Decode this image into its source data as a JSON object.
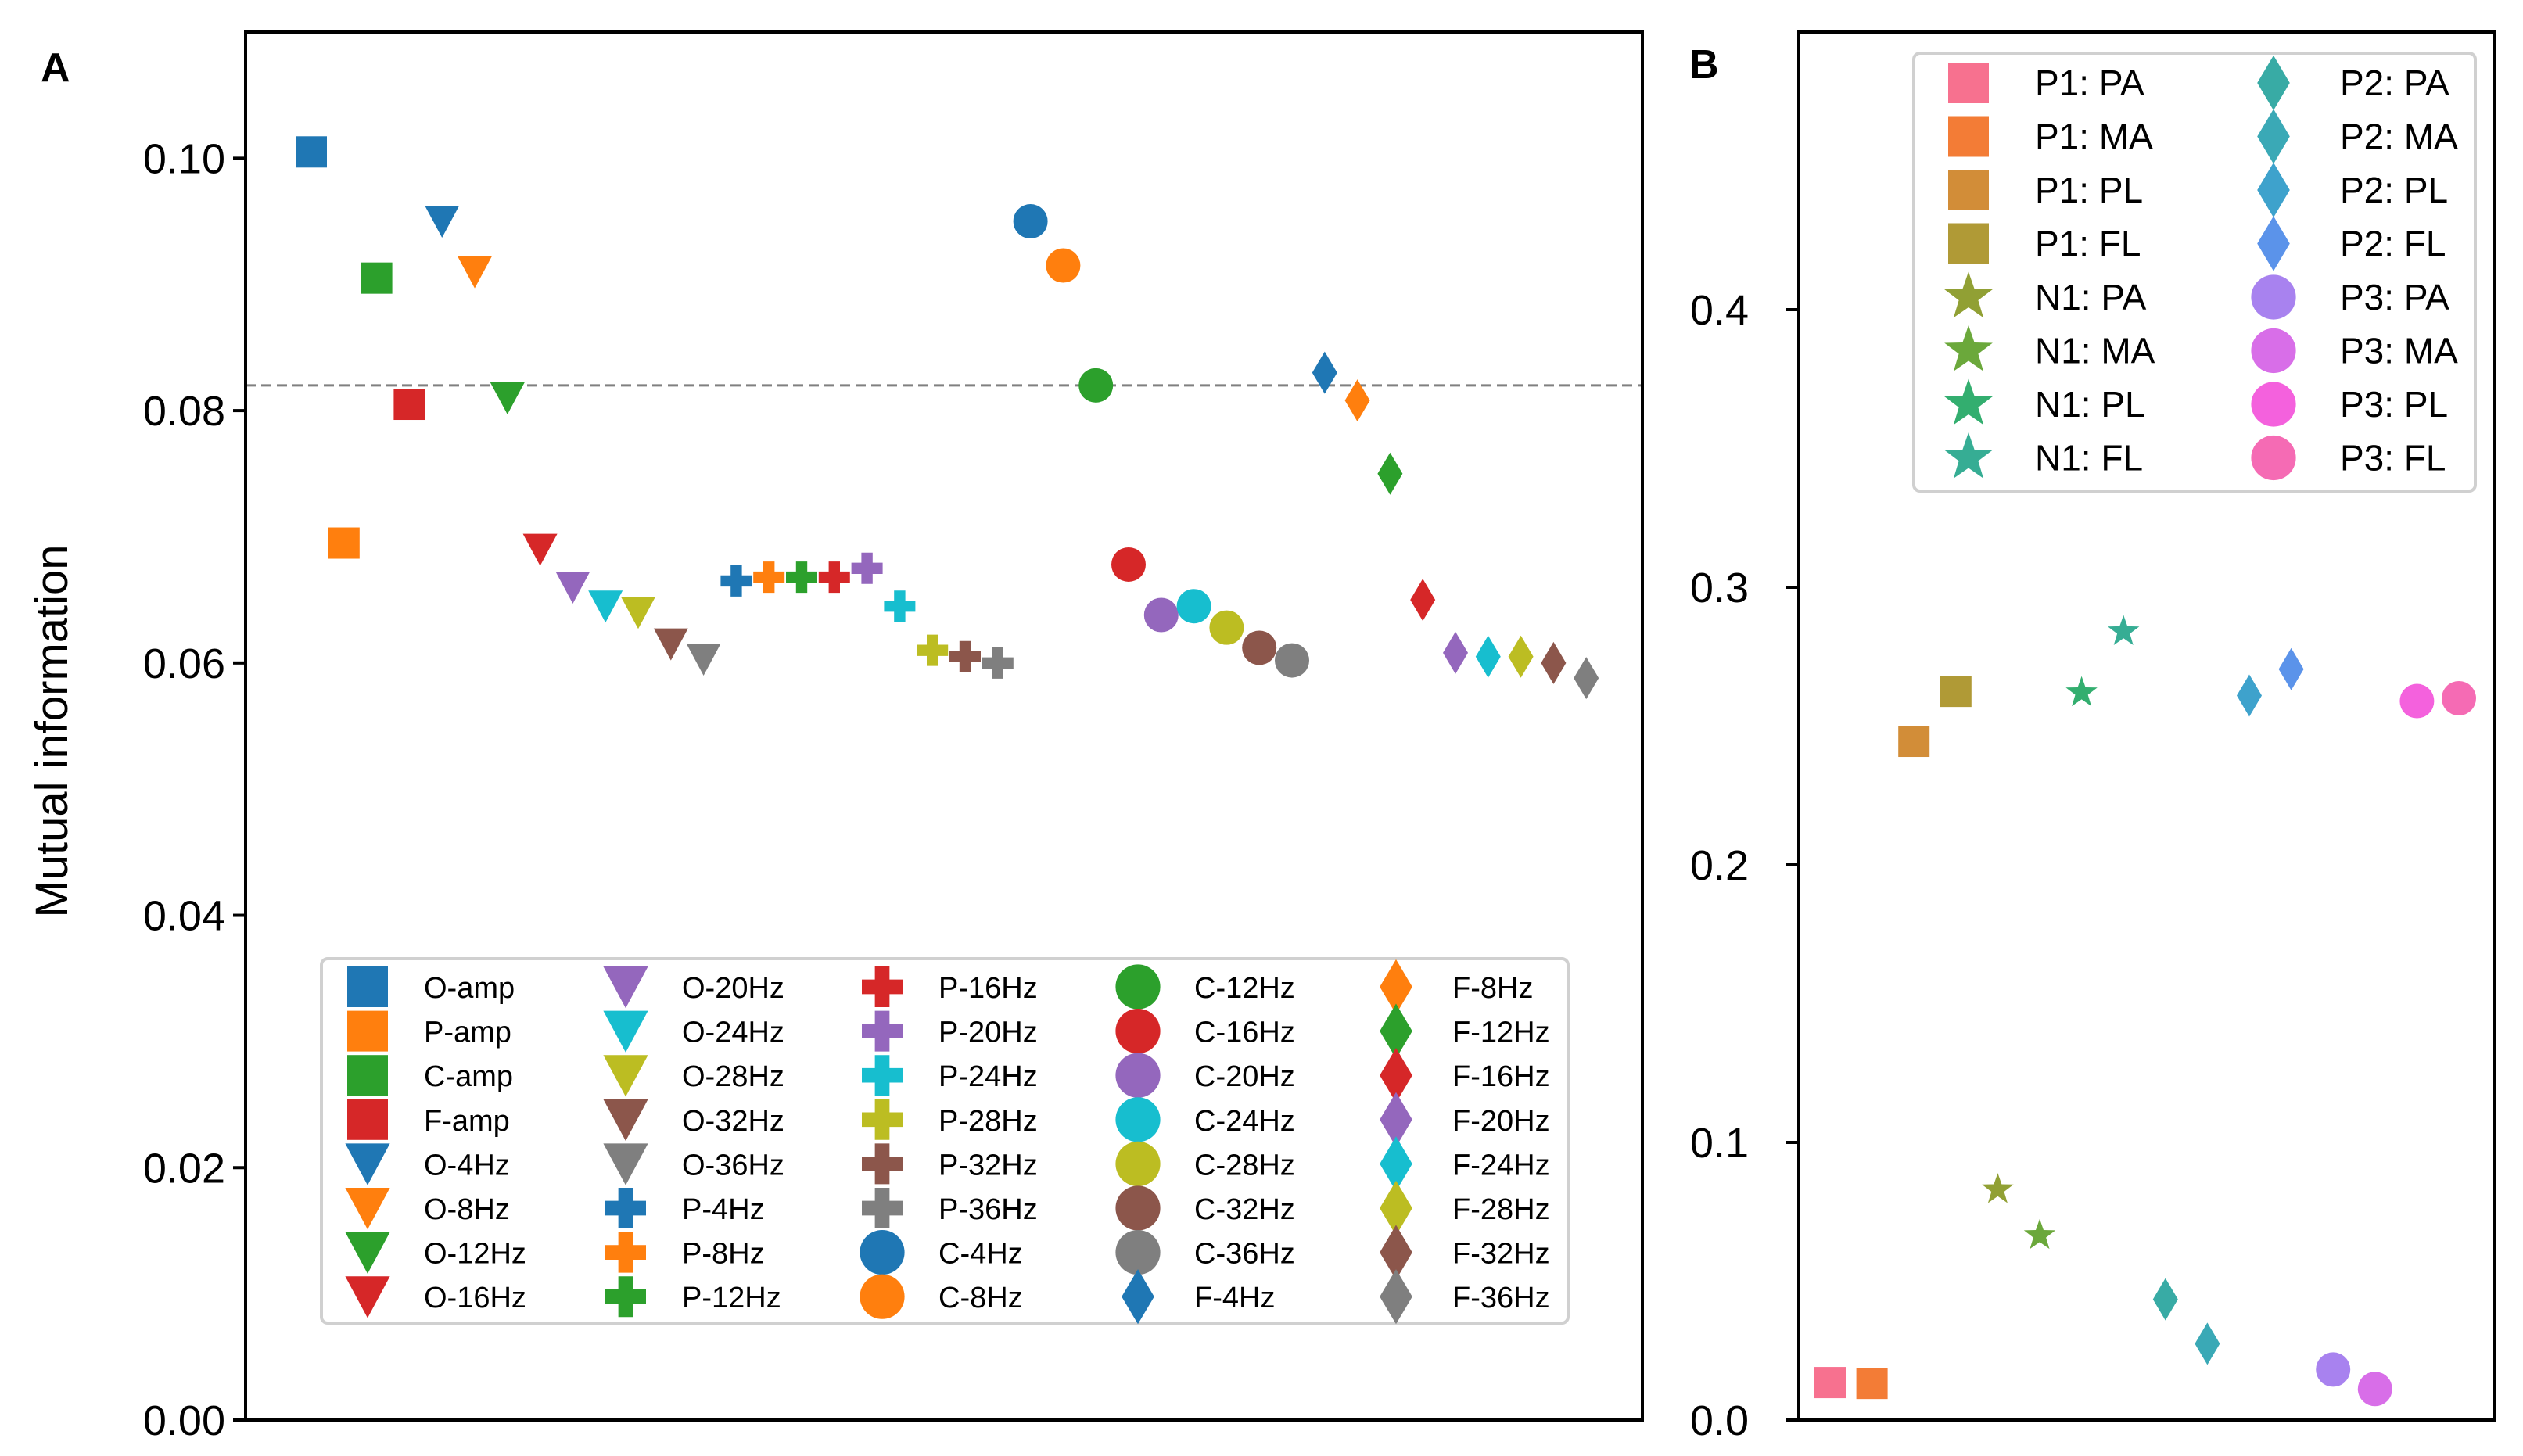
{
  "chart_data": [
    {
      "type": "scatter",
      "panel_label": "A",
      "ylabel": "Mutual information",
      "xlabel": "",
      "ylim": [
        0,
        0.11
      ],
      "yticks": [
        "0.00",
        "0.02",
        "0.04",
        "0.06",
        "0.08",
        "0.10"
      ],
      "reference_line": 0.082,
      "legend_placement": "lower-center",
      "series": [
        {
          "name": "O-amp",
          "value": 0.1005,
          "marker": "square",
          "color": "#1f77b4"
        },
        {
          "name": "P-amp",
          "value": 0.0695,
          "marker": "square",
          "color": "#ff7f0e"
        },
        {
          "name": "C-amp",
          "value": 0.0905,
          "marker": "square",
          "color": "#2ca02c"
        },
        {
          "name": "F-amp",
          "value": 0.0805,
          "marker": "square",
          "color": "#d62728"
        },
        {
          "name": "O-4Hz",
          "value": 0.095,
          "marker": "triangle-down",
          "color": "#1f77b4"
        },
        {
          "name": "O-8Hz",
          "value": 0.091,
          "marker": "triangle-down",
          "color": "#ff7f0e"
        },
        {
          "name": "O-12Hz",
          "value": 0.081,
          "marker": "triangle-down",
          "color": "#2ca02c"
        },
        {
          "name": "O-16Hz",
          "value": 0.069,
          "marker": "triangle-down",
          "color": "#d62728"
        },
        {
          "name": "O-20Hz",
          "value": 0.066,
          "marker": "triangle-down",
          "color": "#9467bd"
        },
        {
          "name": "O-24Hz",
          "value": 0.0645,
          "marker": "triangle-down",
          "color": "#17becf"
        },
        {
          "name": "O-28Hz",
          "value": 0.064,
          "marker": "triangle-down",
          "color": "#bcbd22"
        },
        {
          "name": "O-32Hz",
          "value": 0.0615,
          "marker": "triangle-down",
          "color": "#8c564b"
        },
        {
          "name": "O-36Hz",
          "value": 0.0603,
          "marker": "triangle-down",
          "color": "#7f7f7f"
        },
        {
          "name": "P-4Hz",
          "value": 0.0665,
          "marker": "plus",
          "color": "#1f77b4"
        },
        {
          "name": "P-8Hz",
          "value": 0.0668,
          "marker": "plus",
          "color": "#ff7f0e"
        },
        {
          "name": "P-12Hz",
          "value": 0.0668,
          "marker": "plus",
          "color": "#2ca02c"
        },
        {
          "name": "P-16Hz",
          "value": 0.0668,
          "marker": "plus",
          "color": "#d62728"
        },
        {
          "name": "P-20Hz",
          "value": 0.0675,
          "marker": "plus",
          "color": "#9467bd"
        },
        {
          "name": "P-24Hz",
          "value": 0.0645,
          "marker": "plus",
          "color": "#17becf"
        },
        {
          "name": "P-28Hz",
          "value": 0.061,
          "marker": "plus",
          "color": "#bcbd22"
        },
        {
          "name": "P-32Hz",
          "value": 0.0605,
          "marker": "plus",
          "color": "#8c564b"
        },
        {
          "name": "P-36Hz",
          "value": 0.06,
          "marker": "plus",
          "color": "#7f7f7f"
        },
        {
          "name": "C-4Hz",
          "value": 0.095,
          "marker": "circle",
          "color": "#1f77b4"
        },
        {
          "name": "C-8Hz",
          "value": 0.0915,
          "marker": "circle",
          "color": "#ff7f0e"
        },
        {
          "name": "C-12Hz",
          "value": 0.082,
          "marker": "circle",
          "color": "#2ca02c"
        },
        {
          "name": "C-16Hz",
          "value": 0.0678,
          "marker": "circle",
          "color": "#d62728"
        },
        {
          "name": "C-20Hz",
          "value": 0.0638,
          "marker": "circle",
          "color": "#9467bd"
        },
        {
          "name": "C-24Hz",
          "value": 0.0645,
          "marker": "circle",
          "color": "#17becf"
        },
        {
          "name": "C-28Hz",
          "value": 0.0628,
          "marker": "circle",
          "color": "#bcbd22"
        },
        {
          "name": "C-32Hz",
          "value": 0.0612,
          "marker": "circle",
          "color": "#8c564b"
        },
        {
          "name": "C-36Hz",
          "value": 0.0602,
          "marker": "circle",
          "color": "#7f7f7f"
        },
        {
          "name": "F-4Hz",
          "value": 0.083,
          "marker": "diamond",
          "color": "#1f77b4"
        },
        {
          "name": "F-8Hz",
          "value": 0.0808,
          "marker": "diamond",
          "color": "#ff7f0e"
        },
        {
          "name": "F-12Hz",
          "value": 0.075,
          "marker": "diamond",
          "color": "#2ca02c"
        },
        {
          "name": "F-16Hz",
          "value": 0.065,
          "marker": "diamond",
          "color": "#d62728"
        },
        {
          "name": "F-20Hz",
          "value": 0.0608,
          "marker": "diamond",
          "color": "#9467bd"
        },
        {
          "name": "F-24Hz",
          "value": 0.0605,
          "marker": "diamond",
          "color": "#17becf"
        },
        {
          "name": "F-28Hz",
          "value": 0.0605,
          "marker": "diamond",
          "color": "#bcbd22"
        },
        {
          "name": "F-32Hz",
          "value": 0.06,
          "marker": "diamond",
          "color": "#8c564b"
        },
        {
          "name": "F-36Hz",
          "value": 0.0588,
          "marker": "diamond",
          "color": "#7f7f7f"
        }
      ]
    },
    {
      "type": "scatter",
      "panel_label": "B",
      "ylabel": "",
      "xlabel": "",
      "ylim": [
        0,
        0.5
      ],
      "yticks": [
        "0.0",
        "0.1",
        "0.2",
        "0.3",
        "0.4"
      ],
      "legend_placement": "upper-right",
      "series": [
        {
          "name": "P1: PA",
          "value": 0.0135,
          "marker": "square",
          "color": "#f7718f"
        },
        {
          "name": "P1: MA",
          "value": 0.0132,
          "marker": "square",
          "color": "#f37c36"
        },
        {
          "name": "P1: PL",
          "value": 0.2445,
          "marker": "square",
          "color": "#d28d38"
        },
        {
          "name": "P1: FL",
          "value": 0.2625,
          "marker": "square",
          "color": "#b09a36"
        },
        {
          "name": "N1: PA",
          "value": 0.083,
          "marker": "star",
          "color": "#91a034"
        },
        {
          "name": "N1: MA",
          "value": 0.0665,
          "marker": "star",
          "color": "#6ba83b"
        },
        {
          "name": "N1: PL",
          "value": 0.262,
          "marker": "star",
          "color": "#33ae6f"
        },
        {
          "name": "N1: FL",
          "value": 0.284,
          "marker": "star",
          "color": "#36ad94"
        },
        {
          "name": "P2: PA",
          "value": 0.0435,
          "marker": "diamond",
          "color": "#38aba5"
        },
        {
          "name": "P2: MA",
          "value": 0.0275,
          "marker": "diamond",
          "color": "#3aa9b6"
        },
        {
          "name": "P2: PL",
          "value": 0.261,
          "marker": "diamond",
          "color": "#3ea2cc"
        },
        {
          "name": "P2: FL",
          "value": 0.2705,
          "marker": "diamond",
          "color": "#5b93ea"
        },
        {
          "name": "P3: PA",
          "value": 0.0182,
          "marker": "circle",
          "color": "#a882ef"
        },
        {
          "name": "P3: MA",
          "value": 0.0112,
          "marker": "circle",
          "color": "#d86ee8"
        },
        {
          "name": "P3: PL",
          "value": 0.259,
          "marker": "circle",
          "color": "#f461dd"
        },
        {
          "name": "P3: FL",
          "value": 0.26,
          "marker": "circle",
          "color": "#f56bb4"
        }
      ]
    }
  ]
}
